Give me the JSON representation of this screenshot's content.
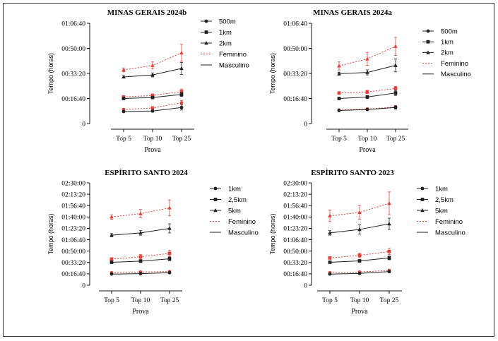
{
  "chart_data": [
    {
      "type": "line",
      "title": "MINAS GERAIS 2024b",
      "xlabel": "Prova",
      "ylabel": "Tempo (horas)",
      "categories": [
        "Top 5",
        "Top 10",
        "Top 25"
      ],
      "yticks": [
        "0",
        "00:16:40",
        "00:33:20",
        "00:50:00",
        "01:06:40"
      ],
      "ylim_seconds": [
        0,
        4000
      ],
      "legend": [
        "500m",
        "1km",
        "2km",
        "Feminino",
        "Masculino"
      ],
      "legend_position": "right",
      "series": [
        {
          "name": "500m",
          "sex": "Feminino",
          "values_seconds": [
            560,
            620,
            830
          ],
          "err": [
            40,
            60,
            90
          ]
        },
        {
          "name": "500m",
          "sex": "Masculino",
          "values_seconds": [
            480,
            500,
            640
          ],
          "err": [
            30,
            40,
            100
          ]
        },
        {
          "name": "1km",
          "sex": "Feminino",
          "values_seconds": [
            1060,
            1120,
            1280
          ],
          "err": [
            40,
            60,
            100
          ]
        },
        {
          "name": "1km",
          "sex": "Masculino",
          "values_seconds": [
            1000,
            1040,
            1160
          ],
          "err": [
            30,
            40,
            80
          ]
        },
        {
          "name": "2km",
          "sex": "Feminino",
          "values_seconds": [
            2140,
            2320,
            2820
          ],
          "err": [
            80,
            140,
            340
          ]
        },
        {
          "name": "2km",
          "sex": "Masculino",
          "values_seconds": [
            1860,
            1940,
            2200
          ],
          "err": [
            40,
            80,
            240
          ]
        }
      ]
    },
    {
      "type": "line",
      "title": "MINAS GERAIS 2024a",
      "xlabel": "Prova",
      "ylabel": "Tempo (horas)",
      "categories": [
        "Top 5",
        "Top 10",
        "Top 25"
      ],
      "yticks": [
        "0",
        "00:16:40",
        "00:33:20",
        "00:50:00",
        "01:06:40"
      ],
      "ylim_seconds": [
        0,
        4000
      ],
      "legend": [
        "500m",
        "1km",
        "2km",
        "Feminino",
        "Masculino"
      ],
      "legend_position": "right",
      "series": [
        {
          "name": "500m",
          "sex": "Feminino",
          "values_seconds": [
            540,
            580,
            660
          ],
          "err": [
            30,
            40,
            60
          ]
        },
        {
          "name": "500m",
          "sex": "Masculino",
          "values_seconds": [
            520,
            560,
            640
          ],
          "err": [
            30,
            30,
            60
          ]
        },
        {
          "name": "1km",
          "sex": "Feminino",
          "values_seconds": [
            1220,
            1260,
            1400
          ],
          "err": [
            40,
            60,
            80
          ]
        },
        {
          "name": "1km",
          "sex": "Masculino",
          "values_seconds": [
            1000,
            1060,
            1220
          ],
          "err": [
            30,
            60,
            100
          ]
        },
        {
          "name": "2km",
          "sex": "Feminino",
          "values_seconds": [
            2300,
            2580,
            3080
          ],
          "err": [
            160,
            260,
            360
          ]
        },
        {
          "name": "2km",
          "sex": "Masculino",
          "values_seconds": [
            1990,
            2040,
            2320
          ],
          "err": [
            60,
            100,
            260
          ]
        }
      ]
    },
    {
      "type": "line",
      "title": "ESPÍRITO SANTO 2024",
      "xlabel": "Prova",
      "ylabel": "Tempo (horas)",
      "categories": [
        "Top 5",
        "Top 10",
        "Top 25"
      ],
      "yticks": [
        "0",
        "00:16:40",
        "00:33:20",
        "00:50:00",
        "01:06:40",
        "01:23:20",
        "01:40:00",
        "01:56:40",
        "02:13:20",
        "02:30:00"
      ],
      "ylim_seconds": [
        0,
        9000
      ],
      "legend": [
        "1km",
        "2,5km",
        "5km",
        "Feminino",
        "Masculino"
      ],
      "legend_position": "right",
      "series": [
        {
          "name": "1km",
          "sex": "Feminino",
          "values_seconds": [
            1100,
            1160,
            1200
          ],
          "err": [
            60,
            80,
            80
          ]
        },
        {
          "name": "1km",
          "sex": "Masculino",
          "values_seconds": [
            980,
            1020,
            1100
          ],
          "err": [
            40,
            60,
            80
          ]
        },
        {
          "name": "2,5km",
          "sex": "Feminino",
          "values_seconds": [
            2300,
            2500,
            2800
          ],
          "err": [
            120,
            200,
            260
          ]
        },
        {
          "name": "2,5km",
          "sex": "Masculino",
          "values_seconds": [
            2020,
            2120,
            2320
          ],
          "err": [
            60,
            100,
            160
          ]
        },
        {
          "name": "5km",
          "sex": "Feminino",
          "values_seconds": [
            6000,
            6300,
            6800
          ],
          "err": [
            200,
            360,
            700
          ]
        },
        {
          "name": "5km",
          "sex": "Masculino",
          "values_seconds": [
            4400,
            4600,
            5000
          ],
          "err": [
            140,
            200,
            400
          ]
        }
      ]
    },
    {
      "type": "line",
      "title": "ESPÍRITO SANTO 2023",
      "xlabel": "Prova",
      "ylabel": "Tempo (horas)",
      "categories": [
        "Top 5",
        "Top 10",
        "Top 25"
      ],
      "yticks": [
        "0",
        "00:16:40",
        "00:33:20",
        "00:50:00",
        "01:06:40",
        "01:23:20",
        "01:40:00",
        "01:56:40",
        "02:13:20",
        "02:30:00"
      ],
      "ylim_seconds": [
        0,
        9000
      ],
      "legend": [
        "1km",
        "2,5km",
        "5km",
        "Feminino",
        "Masculino"
      ],
      "legend_position": "right",
      "series": [
        {
          "name": "1km",
          "sex": "Feminino",
          "values_seconds": [
            1100,
            1160,
            1300
          ],
          "err": [
            60,
            80,
            100
          ]
        },
        {
          "name": "1km",
          "sex": "Masculino",
          "values_seconds": [
            980,
            1040,
            1200
          ],
          "err": [
            40,
            60,
            100
          ]
        },
        {
          "name": "2,5km",
          "sex": "Feminino",
          "values_seconds": [
            2400,
            2620,
            2960
          ],
          "err": [
            120,
            200,
            260
          ]
        },
        {
          "name": "2,5km",
          "sex": "Masculino",
          "values_seconds": [
            2020,
            2140,
            2400
          ],
          "err": [
            60,
            100,
            160
          ]
        },
        {
          "name": "5km",
          "sex": "Feminino",
          "values_seconds": [
            6100,
            6400,
            7200
          ],
          "err": [
            500,
            600,
            1000
          ]
        },
        {
          "name": "5km",
          "sex": "Masculino",
          "values_seconds": [
            4600,
            4900,
            5400
          ],
          "err": [
            200,
            400,
            500
          ]
        }
      ]
    }
  ],
  "colors": {
    "feminino": "#e8403a",
    "masculino": "#222222",
    "axis": "#111111"
  }
}
